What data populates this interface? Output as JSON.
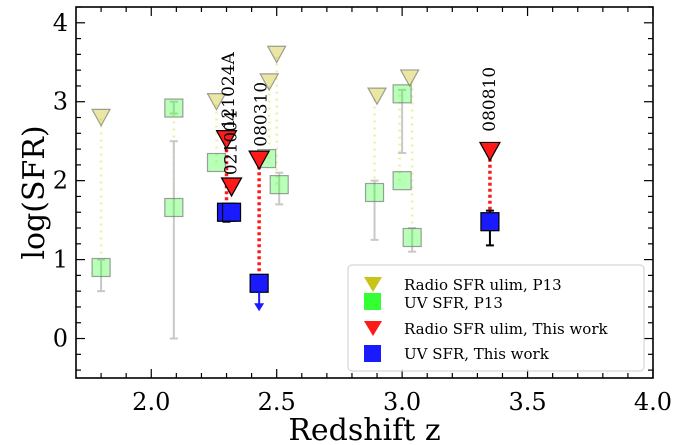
{
  "chart_data": {
    "type": "scatter",
    "title": "",
    "xlabel": "Redshift z",
    "ylabel": "log(SFR)",
    "xlim": [
      1.7,
      4.0
    ],
    "ylim": [
      -0.5,
      4.2
    ],
    "xticks": [
      2.0,
      2.5,
      3.0,
      3.5,
      4.0
    ],
    "xtick_labels": [
      "2.0",
      "2.5",
      "3.0",
      "3.5",
      "4.0"
    ],
    "yticks": [
      0,
      1,
      2,
      3,
      4
    ],
    "ytick_labels": [
      "0",
      "1",
      "2",
      "3",
      "4"
    ],
    "grid": false,
    "legend_position": "bottom-right",
    "colors": {
      "radio_p13": "#c8c41a",
      "uv_p13": "#33ff33",
      "radio_this": "#ff1a1a",
      "uv_this": "#1a1aff",
      "p13_dotted_line": "#eef0a0",
      "this_dotted_line": "#ff1a1a",
      "p13_errorbar": "#c8c8c8",
      "this_errorbar": "#000000",
      "upper_limit_arrow": "#1a1aff"
    },
    "series": [
      {
        "name": "Radio SFR ulim, P13",
        "marker": "triangle-down",
        "points": [
          {
            "x": 1.8,
            "y": 2.8
          },
          {
            "x": 2.26,
            "y": 3.0
          },
          {
            "x": 2.47,
            "y": 3.25
          },
          {
            "x": 2.5,
            "y": 3.6
          },
          {
            "x": 2.9,
            "y": 3.07
          },
          {
            "x": 3.03,
            "y": 3.3
          }
        ]
      },
      {
        "name": "UV SFR, P13",
        "marker": "square",
        "points": [
          {
            "x": 1.8,
            "y": 0.9,
            "ylo": 0.6,
            "yhi": 1.0
          },
          {
            "x": 2.09,
            "y": 2.92,
            "ylo": 2.85,
            "yhi": 3.0
          },
          {
            "x": 2.09,
            "y": 1.66,
            "ylo": 0.0,
            "yhi": 2.5
          },
          {
            "x": 2.26,
            "y": 2.23
          },
          {
            "x": 2.46,
            "y": 2.28
          },
          {
            "x": 2.51,
            "y": 1.95,
            "ylo": 1.7,
            "yhi": 2.1
          },
          {
            "x": 2.89,
            "y": 1.85,
            "ylo": 1.25,
            "yhi": 2.0
          },
          {
            "x": 3.0,
            "y": 3.1,
            "ylo": 2.35,
            "yhi": 3.15
          },
          {
            "x": 3.0,
            "y": 2.0
          },
          {
            "x": 3.04,
            "y": 1.28,
            "ylo": 1.1,
            "yhi": 1.4
          }
        ]
      },
      {
        "name": "Radio SFR ulim, This work",
        "marker": "triangle-down",
        "points": [
          {
            "x": 2.3,
            "y": 2.52
          },
          {
            "x": 2.32,
            "y": 1.92
          },
          {
            "x": 2.43,
            "y": 2.26
          },
          {
            "x": 3.35,
            "y": 2.37
          }
        ]
      },
      {
        "name": "UV SFR, This work",
        "marker": "square",
        "points": [
          {
            "x": 2.3,
            "y": 1.6,
            "ylo": 1.48,
            "yhi": 1.68
          },
          {
            "x": 2.32,
            "y": 1.6,
            "ylo": 1.5,
            "yhi": 1.68
          },
          {
            "x": 2.43,
            "y": 0.7,
            "upper_limit": true
          },
          {
            "x": 3.35,
            "y": 1.48,
            "ylo": 1.18,
            "yhi": 1.62
          }
        ]
      }
    ],
    "connectors": [
      {
        "group": "p13",
        "x": 1.8,
        "y1": 0.9,
        "y2": 2.8
      },
      {
        "group": "p13",
        "x": 2.09,
        "y1": 1.66,
        "y2": 2.92
      },
      {
        "group": "p13",
        "x": 2.26,
        "y1": 2.23,
        "y2": 3.0
      },
      {
        "group": "p13",
        "x": 2.47,
        "y1": 2.28,
        "y2": 3.25
      },
      {
        "group": "p13",
        "x": 2.5,
        "y1": 1.95,
        "y2": 3.6
      },
      {
        "group": "p13",
        "x": 2.89,
        "y1": 1.85,
        "y2": 3.07
      },
      {
        "group": "p13",
        "x": 2.99,
        "y1": 2.0,
        "y2": 3.1
      },
      {
        "group": "p13",
        "x": 3.04,
        "y1": 1.28,
        "y2": 3.3
      },
      {
        "group": "this",
        "x": 2.3,
        "y1": 1.6,
        "y2": 2.52
      },
      {
        "group": "this",
        "x": 2.43,
        "y1": 0.7,
        "y2": 2.26
      },
      {
        "group": "this",
        "x": 3.35,
        "y1": 1.48,
        "y2": 2.37
      }
    ],
    "annotations": [
      {
        "text": "121024A",
        "x": 2.33,
        "y": 2.65
      },
      {
        "text": "021004",
        "x": 2.34,
        "y": 2.07
      },
      {
        "text": "080310",
        "x": 2.46,
        "y": 2.43
      },
      {
        "text": "080810",
        "x": 3.37,
        "y": 2.62
      }
    ]
  }
}
